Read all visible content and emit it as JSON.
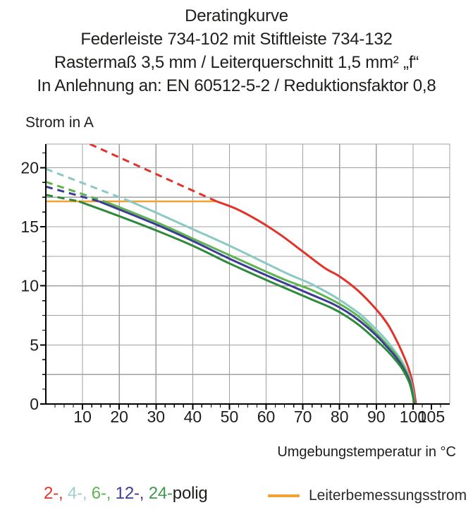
{
  "title": {
    "lines": [
      "Deratingkurve",
      "Federleiste 734-102 mit Stiftleiste 734-132",
      "Rastermaß 3,5 mm / Leiterquerschnitt 1,5 mm² „f“",
      "In Anlehnung an: EN 60512-5-2 / Reduktionsfaktor 0,8"
    ]
  },
  "y_axis": {
    "label": "Strom in A",
    "tick_labels": [
      0,
      5,
      10,
      15,
      20
    ]
  },
  "x_axis": {
    "label": "Umgebungstemperatur in °C",
    "tick_labels": [
      10,
      20,
      30,
      40,
      50,
      60,
      70,
      80,
      90,
      100,
      105
    ]
  },
  "legend": {
    "pole_items": [
      {
        "label": "2-",
        "color": "#e1332a"
      },
      {
        "label": "4-",
        "color": "#9fd0cd"
      },
      {
        "label": "6-",
        "color": "#5fb351"
      },
      {
        "label": "12-",
        "color": "#3c3c96"
      },
      {
        "label": "24-",
        "color": "#3f9a4d"
      }
    ],
    "pole_suffix": "polig",
    "rated_line_label": "Leiterbemessungsstrom",
    "rated_line_color": "#f0a232"
  },
  "chart_data": {
    "type": "line",
    "title": "Deratingkurve",
    "xlabel": "Umgebungstemperatur in °C",
    "ylabel": "Strom in A",
    "xlim": [
      0,
      110
    ],
    "ylim": [
      0,
      22
    ],
    "x_grid_step": 10,
    "y_grid_step": 2.5,
    "x_minor_tick_step": 2.5,
    "y_minor_tick_step": 1.25,
    "grid_color": "#a0a0a0",
    "rated_current_line": {
      "label": "Leiterbemessungsstrom",
      "y": 17.15,
      "x_range": [
        0,
        46.5
      ],
      "color": "#f0a232"
    },
    "series": [
      {
        "name": "2-polig",
        "color": "#e1332a",
        "dashed": [
          [
            12.0,
            22.0
          ],
          [
            46.5,
            17.15
          ]
        ],
        "solid": [
          [
            46.5,
            17.15
          ],
          [
            52,
            16.5
          ],
          [
            58,
            15.5
          ],
          [
            64,
            14.3
          ],
          [
            70,
            12.9
          ],
          [
            76,
            11.5
          ],
          [
            80,
            10.8
          ],
          [
            85,
            9.6
          ],
          [
            90,
            8.0
          ],
          [
            93,
            6.8
          ],
          [
            95,
            5.7
          ],
          [
            97,
            4.4
          ],
          [
            98.8,
            3.0
          ],
          [
            100,
            1.6
          ],
          [
            100.8,
            0
          ]
        ]
      },
      {
        "name": "4-polig",
        "color": "#8cc8c4",
        "dashed": [
          [
            0,
            19.9
          ],
          [
            23,
            17.15
          ]
        ],
        "solid": [
          [
            23,
            17.15
          ],
          [
            30,
            16.2
          ],
          [
            40,
            14.8
          ],
          [
            50,
            13.4
          ],
          [
            60,
            11.9
          ],
          [
            66,
            11.0
          ],
          [
            72,
            10.2
          ],
          [
            78,
            9.2
          ],
          [
            82,
            8.4
          ],
          [
            86,
            7.5
          ],
          [
            90,
            6.3
          ],
          [
            93,
            5.3
          ],
          [
            95,
            4.5
          ],
          [
            97,
            3.6
          ],
          [
            99,
            2.3
          ],
          [
            100.1,
            0.9
          ],
          [
            100.4,
            0
          ]
        ]
      },
      {
        "name": "6-polig",
        "color": "#5fb351",
        "dashed": [
          [
            0,
            18.8
          ],
          [
            16,
            17.15
          ]
        ],
        "solid": [
          [
            16,
            17.15
          ],
          [
            30,
            15.4
          ],
          [
            40,
            14.0
          ],
          [
            50,
            12.6
          ],
          [
            60,
            11.2
          ],
          [
            66,
            10.4
          ],
          [
            72,
            9.7
          ],
          [
            78,
            8.8
          ],
          [
            82,
            8.1
          ],
          [
            86,
            7.2
          ],
          [
            90,
            6.0
          ],
          [
            93,
            5.0
          ],
          [
            95,
            4.3
          ],
          [
            97,
            3.4
          ],
          [
            99,
            2.1
          ],
          [
            100,
            0.8
          ],
          [
            100.3,
            0
          ]
        ]
      },
      {
        "name": "12-polig",
        "color": "#3c3c96",
        "dashed": [
          [
            0,
            18.4
          ],
          [
            14.5,
            17.15
          ]
        ],
        "solid": [
          [
            14.5,
            17.15
          ],
          [
            30,
            15.2
          ],
          [
            40,
            13.8
          ],
          [
            50,
            12.3
          ],
          [
            60,
            10.9
          ],
          [
            66,
            10.1
          ],
          [
            72,
            9.3
          ],
          [
            78,
            8.5
          ],
          [
            82,
            7.8
          ],
          [
            86,
            6.9
          ],
          [
            90,
            5.8
          ],
          [
            93,
            4.8
          ],
          [
            95,
            4.1
          ],
          [
            97,
            3.2
          ],
          [
            99,
            2.0
          ],
          [
            100,
            0.7
          ],
          [
            100.3,
            0
          ]
        ]
      },
      {
        "name": "24-polig",
        "color": "#2e8a3a",
        "dashed": [
          [
            0,
            17.7
          ],
          [
            9,
            17.15
          ]
        ],
        "solid": [
          [
            9,
            17.15
          ],
          [
            20,
            15.9
          ],
          [
            30,
            14.7
          ],
          [
            40,
            13.4
          ],
          [
            50,
            11.9
          ],
          [
            60,
            10.5
          ],
          [
            66,
            9.7
          ],
          [
            72,
            8.9
          ],
          [
            78,
            8.1
          ],
          [
            82,
            7.4
          ],
          [
            86,
            6.5
          ],
          [
            90,
            5.4
          ],
          [
            93,
            4.5
          ],
          [
            95,
            3.8
          ],
          [
            97,
            3.0
          ],
          [
            99,
            1.8
          ],
          [
            100,
            0.6
          ],
          [
            100.2,
            0
          ]
        ]
      }
    ]
  }
}
